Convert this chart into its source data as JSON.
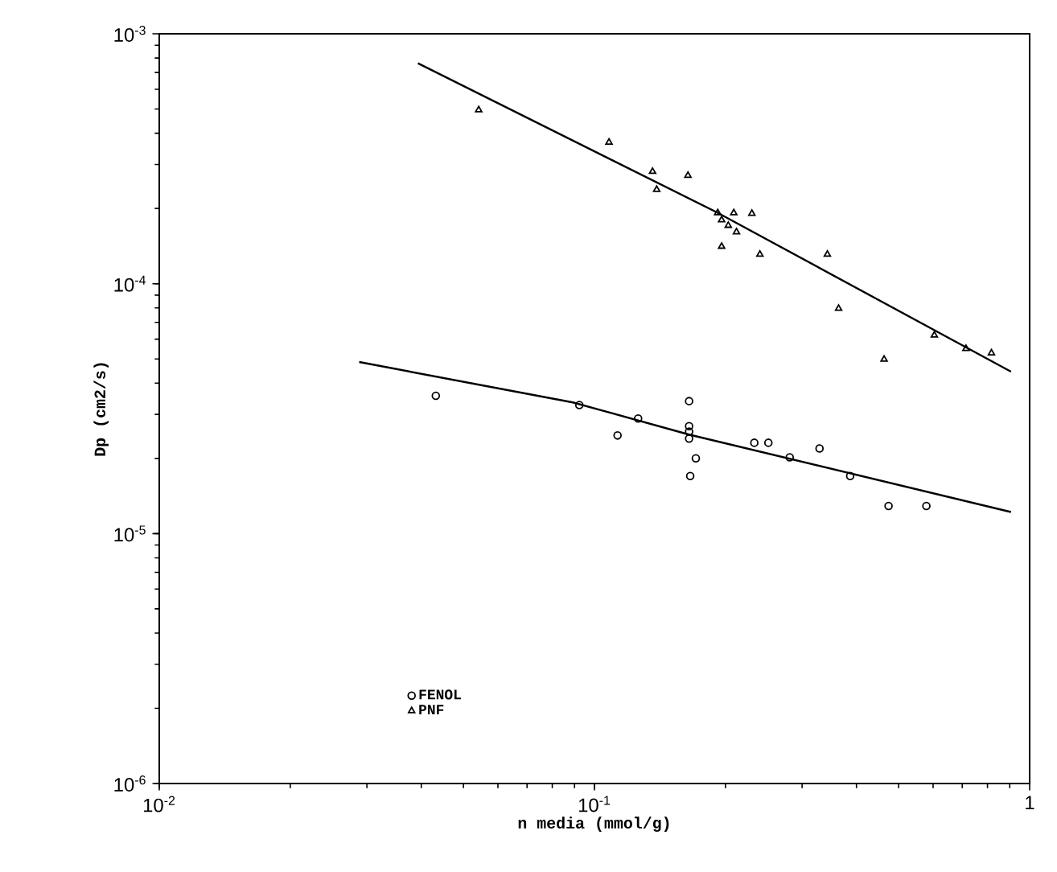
{
  "chart_data": {
    "type": "scatter",
    "xlabel": "n media (mmol/g)",
    "ylabel": "Dp (cm2/s)",
    "log": "xy",
    "grid": false,
    "legend": "bottom left",
    "xlim": [
      0.01,
      1
    ],
    "ylim": [
      1e-06,
      0.001
    ],
    "xticks": [
      {
        "value": 0.01,
        "label": "10$^{-2}$"
      },
      {
        "value": 0.1,
        "label": "10$^{-1}$"
      },
      {
        "value": 1,
        "label": "1"
      }
    ],
    "yticks": [
      {
        "value": 1e-06,
        "label": "10$^{-6}$"
      },
      {
        "value": 1e-05,
        "label": "10$^{-5}$"
      },
      {
        "value": 0.0001,
        "label": "10$^{-4}$"
      },
      {
        "value": 0.001,
        "label": "10$^{-3}$"
      }
    ],
    "series": [
      {
        "name": "FENOL",
        "marker": "circle",
        "color": "#000000",
        "x": [
          0.0432,
          0.0923,
          0.126,
          0.113,
          0.165,
          0.165,
          0.165,
          0.165,
          0.171,
          0.166,
          0.233,
          0.251,
          0.281,
          0.329,
          0.387,
          0.474,
          0.579
        ],
        "values": [
          3.56e-05,
          3.27e-05,
          2.89e-05,
          2.47e-05,
          3.39e-05,
          2.69e-05,
          2.56e-05,
          2.4e-05,
          2e-05,
          1.7e-05,
          2.31e-05,
          2.31e-05,
          2.02e-05,
          2.19e-05,
          1.7e-05,
          1.29e-05,
          1.29e-05
        ]
      },
      {
        "name": "PNF",
        "marker": "triangle",
        "color": "#000000",
        "x": [
          0.0542,
          0.108,
          0.136,
          0.164,
          0.139,
          0.192,
          0.209,
          0.23,
          0.196,
          0.203,
          0.212,
          0.196,
          0.24,
          0.343,
          0.364,
          0.604,
          0.714,
          0.817,
          0.463
        ],
        "values": [
          0.000496,
          0.000368,
          0.000281,
          0.000271,
          0.000238,
          0.000192,
          0.000192,
          0.000191,
          0.00018,
          0.000171,
          0.000161,
          0.000141,
          0.000131,
          0.000131,
          7.96e-05,
          6.22e-05,
          5.5e-05,
          5.28e-05,
          4.98e-05
        ]
      },
      {
        "type": "line",
        "marker": "none",
        "line_style": "solid",
        "color": "#000000",
        "x": [
          0.0288,
          0.0892,
          0.165,
          0.906
        ],
        "values": [
          4.86e-05,
          3.35e-05,
          2.49e-05,
          1.22e-05
        ]
      },
      {
        "type": "line",
        "marker": "none",
        "line_style": "solid",
        "color": "#000000",
        "x": [
          0.0393,
          0.19,
          0.906
        ],
        "values": [
          0.000762,
          0.000194,
          4.45e-05
        ]
      }
    ]
  }
}
